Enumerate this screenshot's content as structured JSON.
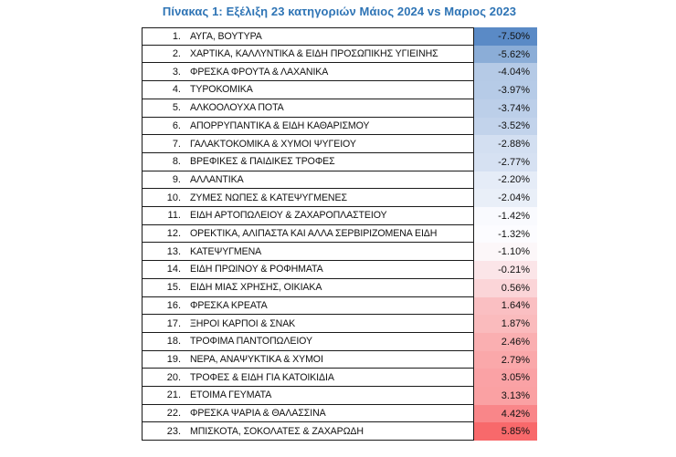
{
  "header": {
    "title": "Πίνακας 1: Εξέλιξη 23 κατηγοριών Μάιος 2024 vs Μαριος 2023",
    "title_color": "#2E74B5"
  },
  "table": {
    "rows": [
      {
        "num": "1.",
        "name": "ΑΥΓΑ, ΒΟΥΤΥΡΑ",
        "value": "-7.50%",
        "color": "#5A8AC6"
      },
      {
        "num": "2.",
        "name": "ΧΑΡΤΙΚΑ, ΚΑΛΛΥΝΤΙΚΑ & ΕΙΔΗ ΠΡΟΣΩΠΙΚΗΣ ΥΓΙΕΙΝΗΣ",
        "value": "-5.62%",
        "color": "#8BADD7"
      },
      {
        "num": "3.",
        "name": "ΦΡΕΣΚΑ ΦΡΟΥΤΑ & ΛΑΧΑΝΙΚΑ",
        "value": "-4.04%",
        "color": "#B5CAE6"
      },
      {
        "num": "4.",
        "name": "ΤΥΡΟΚΟΜΙΚΑ",
        "value": "-3.97%",
        "color": "#B6CBE7"
      },
      {
        "num": "5.",
        "name": "ΑΛΚΟΟΛΟΥΧΑ ΠΟΤΑ",
        "value": "-3.74%",
        "color": "#BCCFE9"
      },
      {
        "num": "6.",
        "name": "ΑΠΟΡΡΥΠΑΝΤΙΚΑ & ΕΙΔΗ ΚΑΘΑΡΙΣΜΟΥ",
        "value": "-3.52%",
        "color": "#C2D3EB"
      },
      {
        "num": "7.",
        "name": "ΓΑΛΑΚΤΟΚΟΜΙΚΑ & ΧΥΜΟΙ ΨΥΓΕΙΟΥ",
        "value": "-2.88%",
        "color": "#D3DFF1"
      },
      {
        "num": "8.",
        "name": "ΒΡΕΦΙΚΕΣ & ΠΑΙΔΙΚΕΣ ΤΡΟΦΕΣ",
        "value": "-2.77%",
        "color": "#D6E1F2"
      },
      {
        "num": "9.",
        "name": "ΑΛΛΑΝΤΙΚΑ",
        "value": "-2.20%",
        "color": "#E5ECF7"
      },
      {
        "num": "10.",
        "name": "ΖΥΜΕΣ ΝΩΠΕΣ & ΚΑΤΕΨΥΓΜΕΝΕΣ",
        "value": "-2.04%",
        "color": "#E9EFF8"
      },
      {
        "num": "11.",
        "name": "ΕΙΔΗ ΑΡΤΟΠΩΛΕΙΟΥ & ΖΑΧΑΡΟΠΛΑΣΤΕΙΟΥ",
        "value": "-1.42%",
        "color": "#F9FAFE"
      },
      {
        "num": "12.",
        "name": "ΟΡΕΚΤΙΚΑ, ΑΛΙΠΑΣΤΑ ΚΑΙ ΑΛΛΑ ΣΕΡΒΙΡΙΖΟΜΕΝΑ ΕΙΔΗ",
        "value": "-1.32%",
        "color": "#FCFCFF"
      },
      {
        "num": "13.",
        "name": "ΚΑΤΕΨΥΓΜΕΝΑ",
        "value": "-1.10%",
        "color": "#FCF7F9"
      },
      {
        "num": "14.",
        "name": "ΕΙΔΗ ΠΡΩΙΝΟΥ & ΡΟΦΗΜΑΤΑ",
        "value": "-0.21%",
        "color": "#FBE5E8"
      },
      {
        "num": "15.",
        "name": "ΕΙΔΗ ΜΙΑΣ ΧΡΗΣΗΣ, ΟΙΚΙΑΚΑ",
        "value": "0.56%",
        "color": "#FBD5D8"
      },
      {
        "num": "16.",
        "name": "ΦΡΕΣΚΑ ΚΡΕΑΤΑ",
        "value": "1.64%",
        "color": "#FABFC2"
      },
      {
        "num": "17.",
        "name": "ΞΗΡΟΙ ΚΑΡΠΟΙ & ΣΝΑΚ",
        "value": "1.87%",
        "color": "#FABBBD"
      },
      {
        "num": "18.",
        "name": "ΤΡΟΦΙΜΑ ΠΑΝΤΟΠΩΛΕΙΟΥ",
        "value": "2.46%",
        "color": "#FAAFB1"
      },
      {
        "num": "19.",
        "name": "ΝΕΡΑ, ΑΝΑΨΥΚΤΙΚΑ & ΧΥΜΟΙ",
        "value": "2.79%",
        "color": "#FAA8AA"
      },
      {
        "num": "20.",
        "name": "ΤΡΟΦΕΣ & ΕΙΔΗ ΓΙΑ ΚΑΤΟΙΚΙΔΙΑ",
        "value": "3.05%",
        "color": "#FAA2A5"
      },
      {
        "num": "21.",
        "name": "ΕΤΟΙΜΑ ΓΕΥΜΑΤΑ",
        "value": "3.13%",
        "color": "#FAA1A3"
      },
      {
        "num": "22.",
        "name": "ΦΡΕΣΚΑ ΨΑΡΙΑ & ΘΑΛΑΣΣΙΝΑ",
        "value": "4.42%",
        "color": "#F98689"
      },
      {
        "num": "23.",
        "name": "ΜΠΙΣΚΟΤΑ, ΣΟΚΟΛΑΤΕΣ & ΖΑΧΑΡΩΔΗ",
        "value": "5.85%",
        "color": "#F8696B"
      }
    ]
  },
  "chart_data": {
    "type": "table",
    "title": "Πίνακας 1: Εξέλιξη 23 κατηγοριών Μάιος 2024 vs Μαριος 2023",
    "categories": [
      "ΑΥΓΑ, ΒΟΥΤΥΡΑ",
      "ΧΑΡΤΙΚΑ, ΚΑΛΛΥΝΤΙΚΑ & ΕΙΔΗ ΠΡΟΣΩΠΙΚΗΣ ΥΓΙΕΙΝΗΣ",
      "ΦΡΕΣΚΑ ΦΡΟΥΤΑ & ΛΑΧΑΝΙΚΑ",
      "ΤΥΡΟΚΟΜΙΚΑ",
      "ΑΛΚΟΟΛΟΥΧΑ ΠΟΤΑ",
      "ΑΠΟΡΡΥΠΑΝΤΙΚΑ & ΕΙΔΗ ΚΑΘΑΡΙΣΜΟΥ",
      "ΓΑΛΑΚΤΟΚΟΜΙΚΑ & ΧΥΜΟΙ ΨΥΓΕΙΟΥ",
      "ΒΡΕΦΙΚΕΣ & ΠΑΙΔΙΚΕΣ ΤΡΟΦΕΣ",
      "ΑΛΛΑΝΤΙΚΑ",
      "ΖΥΜΕΣ ΝΩΠΕΣ & ΚΑΤΕΨΥΓΜΕΝΕΣ",
      "ΕΙΔΗ ΑΡΤΟΠΩΛΕΙΟΥ & ΖΑΧΑΡΟΠΛΑΣΤΕΙΟΥ",
      "ΟΡΕΚΤΙΚΑ, ΑΛΙΠΑΣΤΑ ΚΑΙ ΑΛΛΑ ΣΕΡΒΙΡΙΖΟΜΕΝΑ ΕΙΔΗ",
      "ΚΑΤΕΨΥΓΜΕΝΑ",
      "ΕΙΔΗ ΠΡΩΙΝΟΥ & ΡΟΦΗΜΑΤΑ",
      "ΕΙΔΗ ΜΙΑΣ ΧΡΗΣΗΣ, ΟΙΚΙΑΚΑ",
      "ΦΡΕΣΚΑ ΚΡΕΑΤΑ",
      "ΞΗΡΟΙ ΚΑΡΠΟΙ & ΣΝΑΚ",
      "ΤΡΟΦΙΜΑ ΠΑΝΤΟΠΩΛΕΙΟΥ",
      "ΝΕΡΑ, ΑΝΑΨΥΚΤΙΚΑ & ΧΥΜΟΙ",
      "ΤΡΟΦΕΣ & ΕΙΔΗ ΓΙΑ ΚΑΤΟΙΚΙΔΙΑ",
      "ΕΤΟΙΜΑ ΓΕΥΜΑΤΑ",
      "ΦΡΕΣΚΑ ΨΑΡΙΑ & ΘΑΛΑΣΣΙΝΑ",
      "ΜΠΙΣΚΟΤΑ, ΣΟΚΟΛΑΤΕΣ & ΖΑΧΑΡΩΔΗ"
    ],
    "values": [
      -7.5,
      -5.62,
      -4.04,
      -3.97,
      -3.74,
      -3.52,
      -2.88,
      -2.77,
      -2.2,
      -2.04,
      -1.42,
      -1.32,
      -1.1,
      -0.21,
      0.56,
      1.64,
      1.87,
      2.46,
      2.79,
      3.05,
      3.13,
      4.42,
      5.85
    ],
    "value_unit": "%",
    "color_scale": {
      "min_color": "#5A8AC6",
      "mid_color": "#FCFCFF",
      "max_color": "#F8696B"
    }
  }
}
